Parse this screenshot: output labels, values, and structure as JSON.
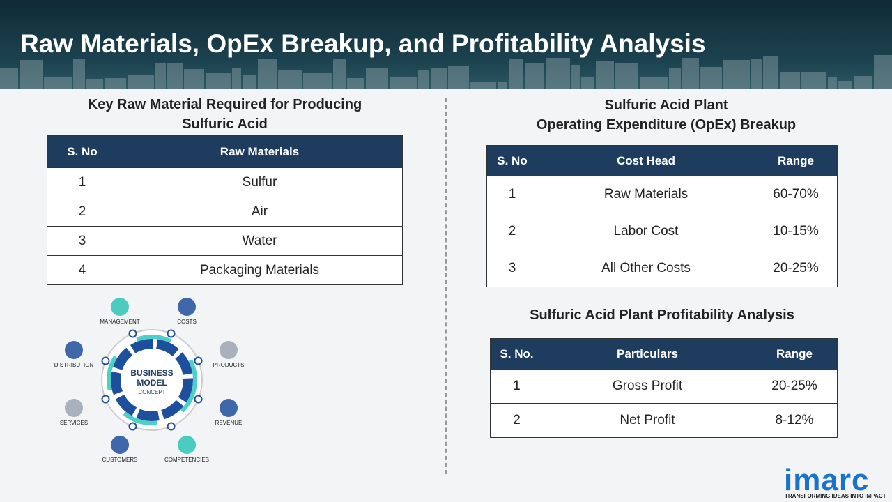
{
  "title": "Raw Materials, OpEx Breakup, and Profitability Analysis",
  "raw_materials": {
    "heading": [
      "Key Raw Material Required for Producing",
      "Sulfuric Acid"
    ],
    "columns": [
      "S. No",
      "Raw Materials"
    ],
    "rows": [
      [
        1,
        "Sulfur"
      ],
      [
        2,
        "Air"
      ],
      [
        3,
        "Water"
      ],
      [
        4,
        "Packaging Materials"
      ]
    ]
  },
  "diagram": {
    "center": [
      "BUSINESS",
      "MODEL",
      "CONCEPT"
    ],
    "labels": [
      "MANAGEMENT",
      "COSTS",
      "PRODUCTS",
      "REVENUE",
      "COMPETENCIES",
      "CUSTOMERS",
      "SERVICES",
      "DISTRIBUTION"
    ]
  },
  "opex": {
    "heading": [
      "Sulfuric Acid Plant",
      "Operating Expenditure (OpEx) Breakup"
    ],
    "columns": [
      "S. No",
      "Cost Head",
      "Range"
    ],
    "rows": [
      [
        1,
        "Raw Materials",
        "60-70%"
      ],
      [
        2,
        "Labor Cost",
        "10-15%"
      ],
      [
        3,
        "All Other Costs",
        "20-25%"
      ]
    ]
  },
  "profitability": {
    "heading": [
      "Sulfuric Acid Plant Profitability Analysis"
    ],
    "columns": [
      "S. No.",
      "Particulars",
      "Range"
    ],
    "rows": [
      [
        1,
        "Gross Profit",
        "20-25%"
      ],
      [
        2,
        "Net Profit",
        "8-12%"
      ]
    ]
  },
  "logo": {
    "name": "imarc",
    "tagline": "TRANSFORMING IDEAS INTO IMPACT"
  }
}
